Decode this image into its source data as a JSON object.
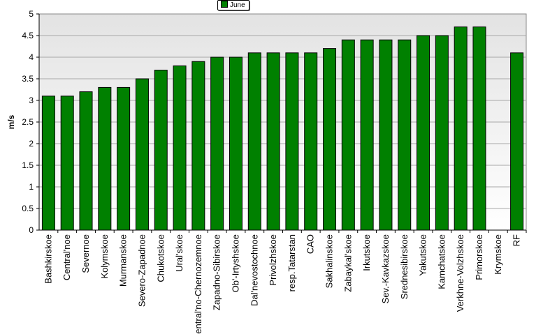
{
  "chart_data": {
    "type": "bar",
    "title": "",
    "xlabel": "",
    "ylabel": "m/s",
    "ylim": [
      0,
      5
    ],
    "ytick_step": 0.5,
    "grid": true,
    "legend_position": "top-center",
    "bar_color": "#008000",
    "categories": [
      "Bashkirskoe",
      "Central'noe",
      "Severnoe",
      "Kolymskoe",
      "Murmanskoe",
      "Severo-Zapadnoe",
      "Chukotskoe",
      "Ural'skoe",
      "Central'no-Chernozemnoe",
      "Zapadno-Sibirskoe",
      "Ob'-Irtyshskoe",
      "Dal'nevostochnoe",
      "Privolzhskoe",
      "resp.Tatarstan",
      "CAO",
      "Sakhalinskoe",
      "Zabaykal'skoe",
      "Irkutskoe",
      "Sev.-Kavkazskoe",
      "Srednesibirskoe",
      "Yakutskoe",
      "Kamchatskoe",
      "Verkhne-Volzhskoe",
      "Primorskoe",
      "Krymskoe",
      "RF"
    ],
    "series": [
      {
        "name": "June",
        "values": [
          3.1,
          3.1,
          3.2,
          3.3,
          3.3,
          3.5,
          3.7,
          3.8,
          3.9,
          4.0,
          4.0,
          4.1,
          4.1,
          4.1,
          4.1,
          4.2,
          4.4,
          4.4,
          4.4,
          4.4,
          4.5,
          4.5,
          4.7,
          4.7,
          null,
          4.1
        ]
      }
    ]
  }
}
